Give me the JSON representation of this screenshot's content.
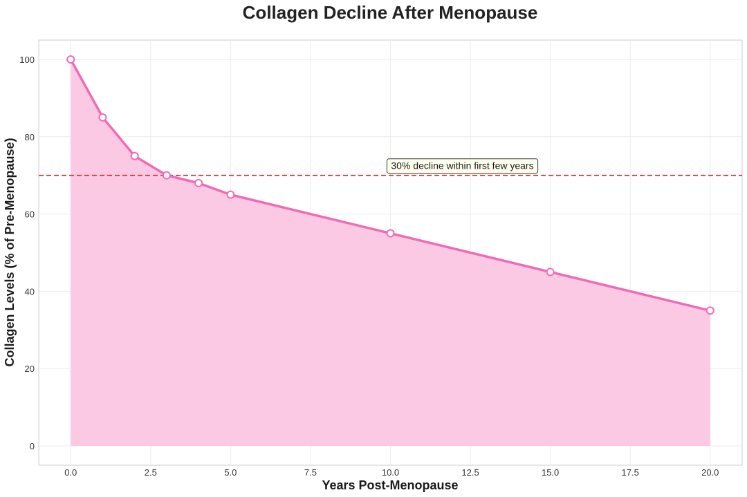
{
  "chart_data": {
    "type": "area",
    "title": "Collagen Decline After Menopause",
    "xlabel": "Years Post-Menopause",
    "ylabel": "Collagen Levels (% of Pre-Menopause)",
    "xlim": [
      -1,
      21
    ],
    "ylim": [
      -5,
      105
    ],
    "x_ticks": [
      0.0,
      2.5,
      5.0,
      7.5,
      10.0,
      12.5,
      15.0,
      17.5,
      20.0
    ],
    "x_tick_labels": [
      "0.0",
      "2.5",
      "5.0",
      "7.5",
      "10.0",
      "12.5",
      "15.0",
      "17.5",
      "20.0"
    ],
    "y_ticks": [
      0,
      20,
      40,
      60,
      80,
      100
    ],
    "y_tick_labels": [
      "0",
      "20",
      "40",
      "60",
      "80",
      "100"
    ],
    "grid": true,
    "series": [
      {
        "x": [
          0,
          1,
          2,
          3,
          4,
          5,
          10,
          15,
          20
        ],
        "y": [
          100,
          85,
          75,
          70,
          68,
          65,
          55,
          45,
          35
        ]
      }
    ],
    "reference_line": {
      "y": 70,
      "style": "dashed",
      "color": "#d62728"
    },
    "annotation": {
      "text": "30% decline within first few years",
      "x": 10,
      "y": 72.5
    },
    "colors": {
      "line": "#f06bb5",
      "fill": "#fcc9e5",
      "marker_fill": "#ffffff",
      "grid": "#ebebeb",
      "axes_border": "#cccccc",
      "annotation_bg": "#fffff0",
      "annotation_border": "#333333"
    }
  }
}
